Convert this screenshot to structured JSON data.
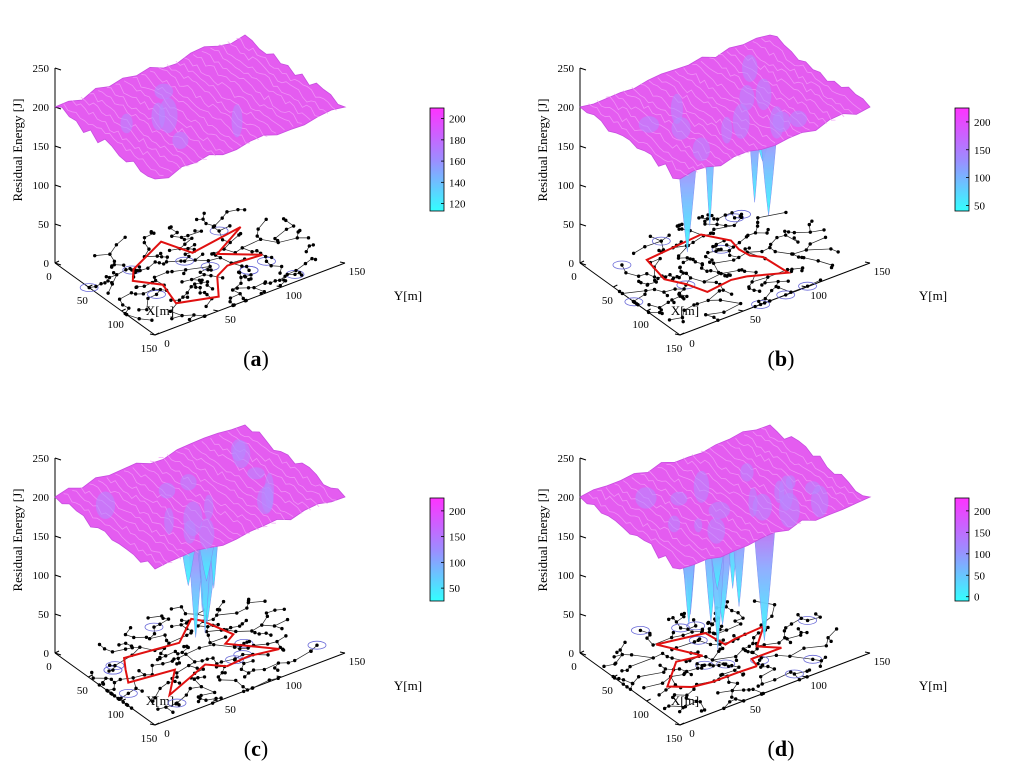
{
  "figure": {
    "caption_open": "(",
    "caption_close": ")"
  },
  "chart_data": [
    {
      "type": "surface",
      "panel": "a",
      "zlabel": "Residual Energy [J]",
      "xlabel": "X[m]",
      "ylabel": "Y[m]",
      "z_ticks": [
        0,
        50,
        100,
        150,
        200,
        250
      ],
      "x_ticks": [
        0,
        50,
        100,
        150
      ],
      "y_ticks": [
        0,
        50,
        100,
        150
      ],
      "zlim": [
        0,
        250
      ],
      "xlim": [
        0,
        150
      ],
      "ylim": [
        0,
        150
      ],
      "colorbar": {
        "ticks": [
          120,
          140,
          160,
          180,
          200
        ],
        "range": [
          113,
          210
        ],
        "colors": [
          "#33ffff",
          "#ff33ff"
        ]
      },
      "surface": {
        "base_energy": 200,
        "min_energy": 113,
        "n_wells": 0
      },
      "grid": false
    },
    {
      "type": "surface",
      "panel": "b",
      "zlabel": "Residual Energy [J]",
      "xlabel": "X[m]",
      "ylabel": "Y[m]",
      "z_ticks": [
        0,
        50,
        100,
        150,
        200,
        250
      ],
      "x_ticks": [
        0,
        50,
        100,
        150
      ],
      "y_ticks": [
        0,
        50,
        100,
        150
      ],
      "zlim": [
        0,
        250
      ],
      "xlim": [
        0,
        150
      ],
      "ylim": [
        0,
        150
      ],
      "colorbar": {
        "ticks": [
          50,
          100,
          150,
          200
        ],
        "range": [
          40,
          225
        ],
        "colors": [
          "#33ffff",
          "#ff33ff"
        ]
      },
      "surface": {
        "base_energy": 200,
        "min_energy": 40,
        "n_wells": 6
      },
      "grid": false
    },
    {
      "type": "surface",
      "panel": "c",
      "zlabel": "Residual Energy [J]",
      "xlabel": "X[m]",
      "ylabel": "Y[m]",
      "z_ticks": [
        0,
        50,
        100,
        150,
        200,
        250
      ],
      "x_ticks": [
        0,
        50,
        100,
        150
      ],
      "y_ticks": [
        0,
        50,
        100,
        150
      ],
      "zlim": [
        0,
        250
      ],
      "xlim": [
        0,
        150
      ],
      "ylim": [
        0,
        150
      ],
      "colorbar": {
        "ticks": [
          50,
          100,
          150,
          200
        ],
        "range": [
          25,
          225
        ],
        "colors": [
          "#33ffff",
          "#ff33ff"
        ]
      },
      "surface": {
        "base_energy": 200,
        "min_energy": 25,
        "n_wells": 8
      },
      "grid": false
    },
    {
      "type": "surface",
      "panel": "d",
      "zlabel": "Residual Energy [J]",
      "xlabel": "X[m]",
      "ylabel": "Y[m]",
      "z_ticks": [
        0,
        50,
        100,
        150,
        200,
        250
      ],
      "x_ticks": [
        0,
        50,
        100,
        150
      ],
      "y_ticks": [
        0,
        50,
        100,
        150
      ],
      "zlim": [
        0,
        250
      ],
      "xlim": [
        0,
        150
      ],
      "ylim": [
        0,
        150
      ],
      "colorbar": {
        "ticks": [
          0,
          50,
          100,
          150,
          200
        ],
        "range": [
          -10,
          230
        ],
        "colors": [
          "#33ffff",
          "#ff33ff"
        ]
      },
      "surface": {
        "base_energy": 200,
        "min_energy": 5,
        "n_wells": 10
      },
      "grid": false
    }
  ]
}
